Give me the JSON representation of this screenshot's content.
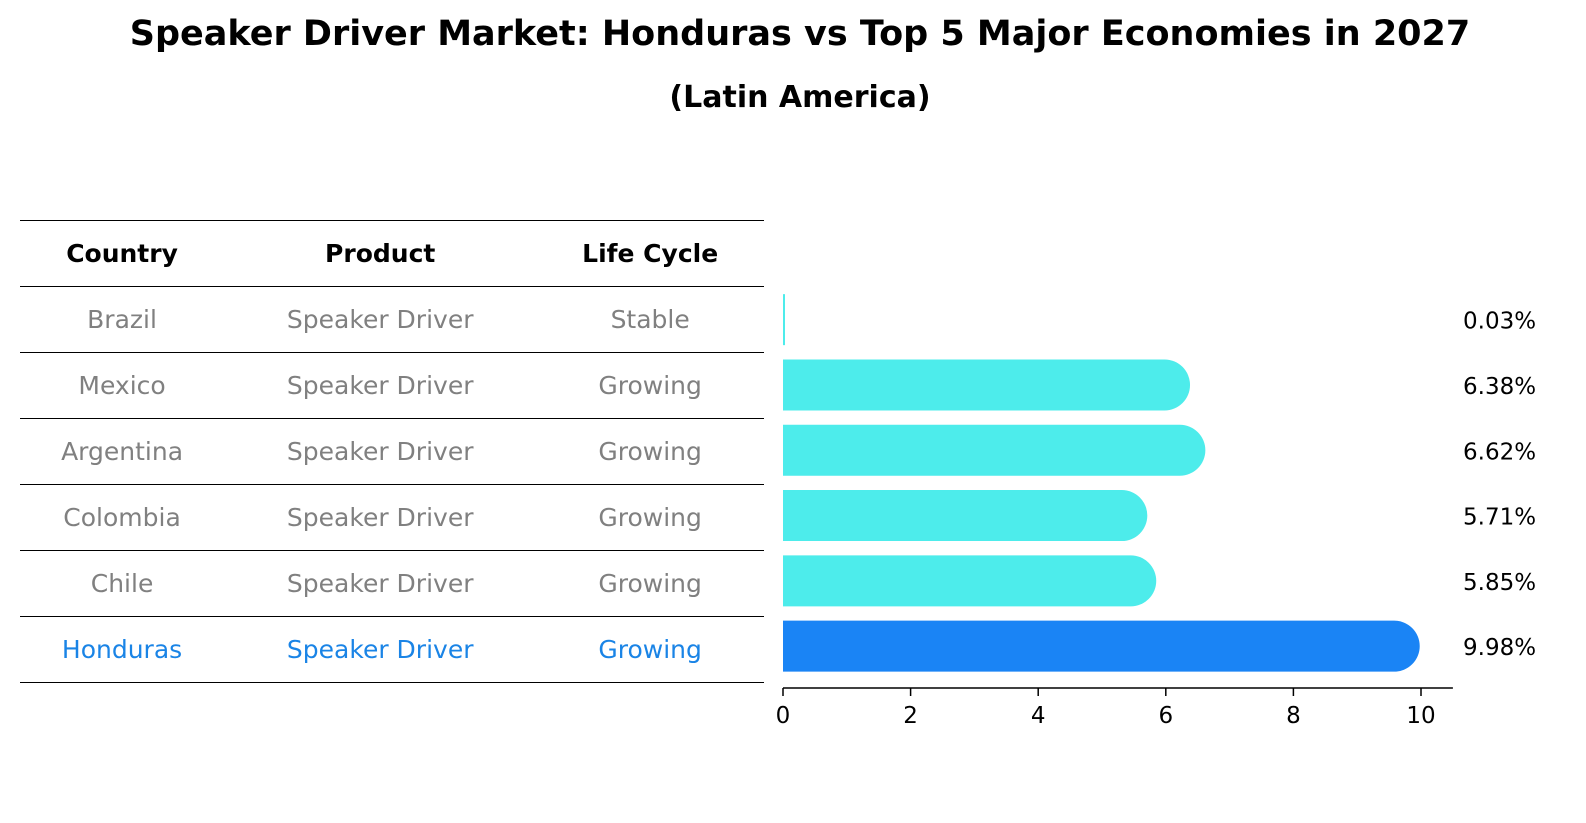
{
  "title": "Speaker Driver Market: Honduras vs Top 5 Major Economies in 2027",
  "subtitle": "(Latin America)",
  "table": {
    "headers": [
      "Country",
      "Product",
      "Life Cycle"
    ],
    "rows": [
      {
        "country": "Brazil",
        "product": "Speaker Driver",
        "life_cycle": "Stable"
      },
      {
        "country": "Mexico",
        "product": "Speaker Driver",
        "life_cycle": "Growing"
      },
      {
        "country": "Argentina",
        "product": "Speaker Driver",
        "life_cycle": "Growing"
      },
      {
        "country": "Colombia",
        "product": "Speaker Driver",
        "life_cycle": "Growing"
      },
      {
        "country": "Chile",
        "product": "Speaker Driver",
        "life_cycle": "Growing"
      },
      {
        "country": "Honduras",
        "product": "Speaker Driver",
        "life_cycle": "Growing"
      }
    ]
  },
  "colors": {
    "bar": "#4deceb",
    "highlight": "#1a84f5",
    "highlight_text": "#1a84e6",
    "muted_text": "#808080"
  },
  "chart_data": {
    "type": "bar",
    "orientation": "horizontal",
    "categories": [
      "Brazil",
      "Mexico",
      "Argentina",
      "Colombia",
      "Chile",
      "Honduras"
    ],
    "values": [
      0.03,
      6.38,
      6.62,
      5.71,
      5.85,
      9.98
    ],
    "value_labels": [
      "0.03%",
      "6.38%",
      "6.62%",
      "5.71%",
      "5.85%",
      "9.98%"
    ],
    "highlight": "Honduras",
    "xlim": [
      0,
      10.5
    ],
    "xticks": [
      0,
      2,
      4,
      6,
      8,
      10
    ],
    "grid": false
  }
}
